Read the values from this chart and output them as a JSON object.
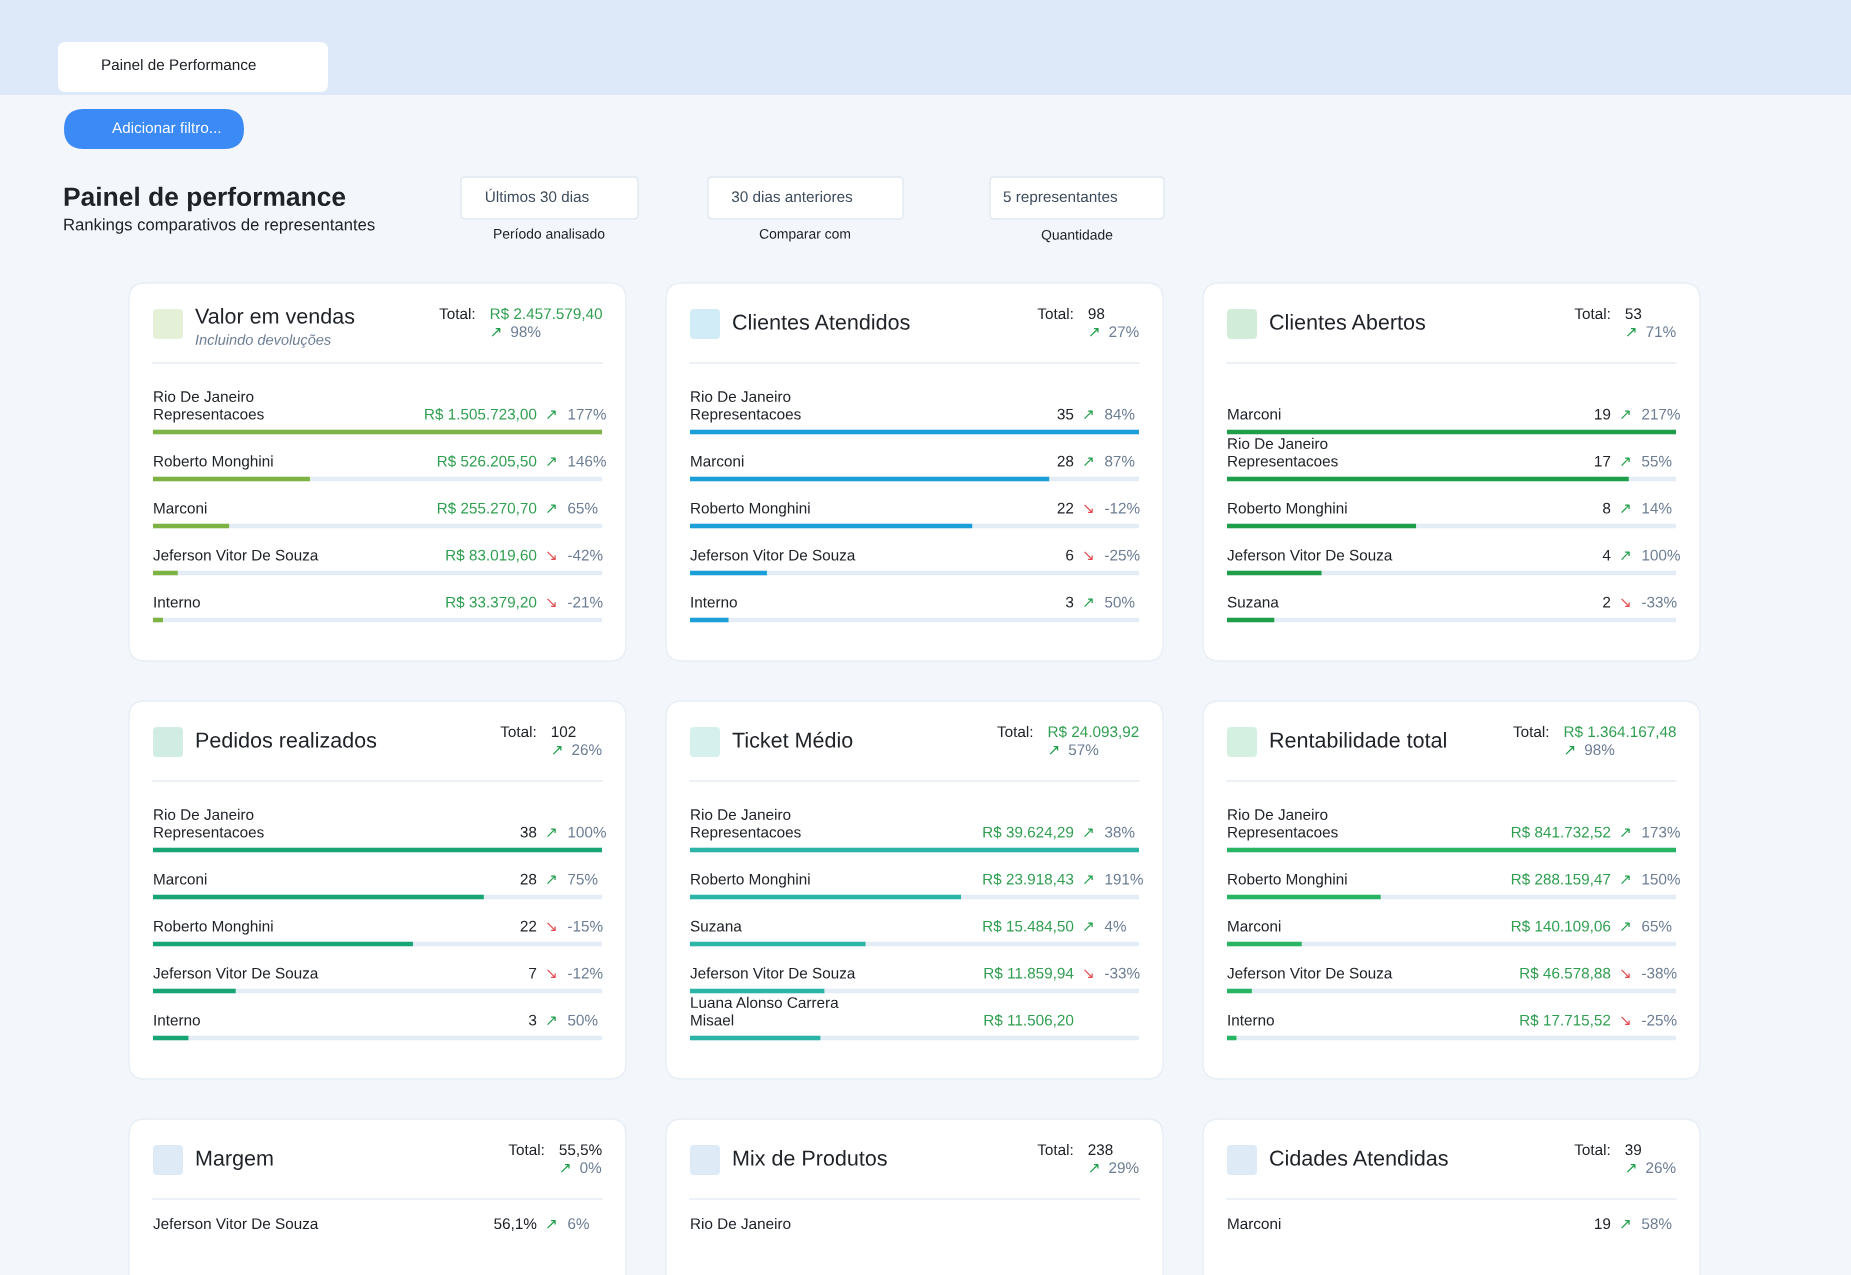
{
  "chart_data": [
    {
      "type": "other",
      "title": "Painel de performance",
      "subtitle": "Rankings comparativos de representantes",
      "annotations": [
        "Painel de Performance",
        "Adicionar filtro...",
        "Últimos 30 dias",
        "Período analisado",
        "30 dias anteriores",
        "Comparar com",
        "5 representantes",
        "Quantidade"
      ]
    },
    {
      "type": "bar",
      "orientation": "horizontal",
      "title": "Valor em vendas",
      "subtitle": "Incluindo devoluções",
      "color": "#7cb342",
      "categories": [
        "Rio De Janeiro\nRepresentacoes",
        "Roberto Monghini",
        "Marconi",
        "Jeferson Vitor De Souza",
        "Interno"
      ],
      "values": [
        1505723.0,
        526205.5,
        255270.7,
        83019.6,
        33379.2
      ],
      "value_labels": [
        "R$ 1.505.723,00",
        "R$ 526.205,50",
        "R$ 255.270,70",
        "R$ 83.019,60",
        "R$ 33.379,20"
      ],
      "annotations": [
        "Total:",
        "R$ 2.457.579,40",
        "↗ 98%",
        "↗ 177%",
        "↗ 146%",
        "↗ 65%",
        "↘ -42%",
        "↘ -21%"
      ]
    },
    {
      "type": "bar",
      "orientation": "horizontal",
      "title": "Clientes Atendidos",
      "color": "#1a9fd8",
      "categories": [
        "Rio De Janeiro\nRepresentacoes",
        "Marconi",
        "Roberto Monghini",
        "Jeferson Vitor De Souza",
        "Interno"
      ],
      "values": [
        35,
        28,
        22,
        6,
        3
      ],
      "data_labels": true,
      "annotations": [
        "Total:",
        "98",
        "↗ 27%",
        "↗ 84%",
        "↗ 87%",
        "↘ -12%",
        "↘ -25%",
        "↗ 50%"
      ]
    },
    {
      "type": "bar",
      "orientation": "horizontal",
      "title": "Clientes Abertos",
      "color": "#1e9e48",
      "categories": [
        "Marconi",
        "Rio De Janeiro\nRepresentacoes",
        "Roberto Monghini",
        "Jeferson Vitor De Souza",
        "Suzana"
      ],
      "values": [
        19,
        17,
        8,
        4,
        2
      ],
      "data_labels": true,
      "annotations": [
        "Total:",
        "53",
        "↗ 71%",
        "↗ 217%",
        "↗ 55%",
        "↗ 14%",
        "↗ 100%",
        "↘ -33%"
      ]
    },
    {
      "type": "bar",
      "orientation": "horizontal",
      "title": "Pedidos realizados",
      "color": "#17a673",
      "categories": [
        "Rio De Janeiro\nRepresentacoes",
        "Marconi",
        "Roberto Monghini",
        "Jeferson Vitor De Souza",
        "Interno"
      ],
      "values": [
        38,
        28,
        22,
        7,
        3
      ],
      "data_labels": true,
      "annotations": [
        "Total:",
        "102",
        "↗ 26%",
        "↗ 100%",
        "↗ 75%",
        "↘ -15%",
        "↘ -12%",
        "↗ 50%"
      ]
    },
    {
      "type": "bar",
      "orientation": "horizontal",
      "title": "Ticket Médio",
      "color": "#2bb5a6",
      "categories": [
        "Rio De Janeiro\nRepresentacoes",
        "Roberto Monghini",
        "Suzana",
        "Jeferson Vitor De Souza",
        "Luana Alonso Carrera\nMisael"
      ],
      "values": [
        39624.29,
        23918.43,
        15484.5,
        11859.94,
        11506.2
      ],
      "value_labels": [
        "R$ 39.624,29",
        "R$ 23.918,43",
        "R$ 15.484,50",
        "R$ 11.859,94",
        "R$ 11.506,20"
      ],
      "annotations": [
        "Total:",
        "R$ 24.093,92",
        "↗ 57%",
        "↗ 38%",
        "↗ 191%",
        "↗ 4%",
        "↘ -33%"
      ]
    },
    {
      "type": "bar",
      "orientation": "horizontal",
      "title": "Rentabilidade total",
      "color": "#28b463",
      "categories": [
        "Rio De Janeiro\nRepresentacoes",
        "Roberto Monghini",
        "Marconi",
        "Jeferson Vitor De Souza",
        "Interno"
      ],
      "values": [
        841732.52,
        288159.47,
        140109.06,
        46578.88,
        17715.52
      ],
      "value_labels": [
        "R$ 841.732,52",
        "R$ 288.159,47",
        "R$ 140.109,06",
        "R$ 46.578,88",
        "R$ 17.715,52"
      ],
      "annotations": [
        "Total:",
        "R$ 1.364.167,48",
        "↗ 98%",
        "↗ 173%",
        "↗ 150%",
        "↗ 65%",
        "↘ -38%",
        "↘ -25%"
      ]
    },
    {
      "type": "other",
      "title": "Margem",
      "annotations": [
        "Total:",
        "55,5%",
        "↗ 0%",
        "Jeferson Vitor De Souza",
        "56,1%",
        "↗ 6%"
      ]
    },
    {
      "type": "other",
      "title": "Mix de Produtos",
      "annotations": [
        "Total:",
        "238",
        "↗ 29%",
        "Rio De Janeiro"
      ]
    },
    {
      "type": "other",
      "title": "Cidades Atendidas",
      "annotations": [
        "Total:",
        "39",
        "↗ 26%",
        "Marconi",
        "19",
        "↗ 58%"
      ]
    }
  ]
}
